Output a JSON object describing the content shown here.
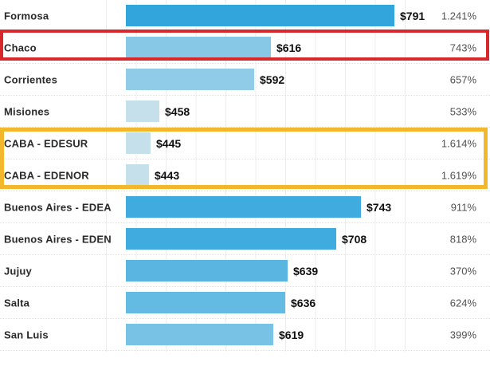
{
  "chart_data": {
    "type": "bar",
    "orientation": "horizontal",
    "title": "",
    "categories": [
      "Formosa",
      "Chaco",
      "Corrientes",
      "Misiones",
      "CABA - EDESUR",
      "CABA - EDENOR",
      "Buenos Aires - EDEA",
      "Buenos Aires - EDEN",
      "Jujuy",
      "Salta",
      "San Luis"
    ],
    "values": [
      791,
      616,
      592,
      458,
      445,
      443,
      743,
      708,
      639,
      636,
      619
    ],
    "value_labels": [
      "$791",
      "$616",
      "$592",
      "$458",
      "$445",
      "$443",
      "$743",
      "$708",
      "$639",
      "$636",
      "$619"
    ],
    "pct_labels": [
      "1.241%",
      "743%",
      "657%",
      "533%",
      "1.614%",
      "1.619%",
      "911%",
      "818%",
      "370%",
      "624%",
      "399%"
    ],
    "bar_colors": [
      "#32a6dc",
      "#87c8e6",
      "#90cce8",
      "#c5dfeb",
      "#c5dfeb",
      "#c5dfeb",
      "#3fabde",
      "#3fabde",
      "#5ab5e0",
      "#63bae2",
      "#78c2e5"
    ],
    "axis_min": 410,
    "axis_max": 800,
    "grid": true,
    "highlights": [
      {
        "name": "red-box",
        "rows": [
          "Chaco"
        ],
        "color": "#d8282b"
      },
      {
        "name": "yellow-box",
        "rows": [
          "CABA - EDESUR",
          "CABA - EDENOR"
        ],
        "color": "#f3b72c"
      }
    ]
  }
}
